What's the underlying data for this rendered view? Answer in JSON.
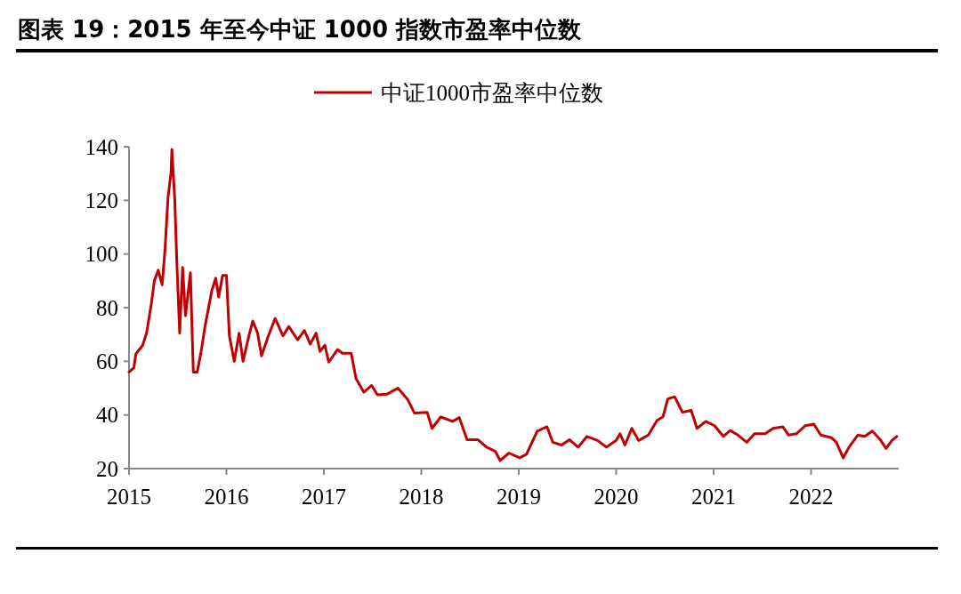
{
  "chart_data": {
    "type": "line",
    "title": "图表 19：2015 年至今中证 1000 指数市盈率中位数",
    "legend": "top",
    "grid": false,
    "xlim": [
      2015,
      2022.9
    ],
    "xticks": [
      2015,
      2016,
      2017,
      2018,
      2019,
      2020,
      2021,
      2022
    ],
    "ylim": [
      20,
      140
    ],
    "yticks": [
      20,
      40,
      60,
      80,
      100,
      120,
      140
    ],
    "line_style": "solid",
    "marker": "none",
    "series": [
      {
        "name": "中证1000市盈率中位数",
        "color": "#c00000",
        "x": [
          2015.0,
          2015.05,
          2015.07,
          2015.14,
          2015.18,
          2015.23,
          2015.26,
          2015.3,
          2015.34,
          2015.37,
          2015.4,
          2015.43,
          2015.44,
          2015.47,
          2015.49,
          2015.52,
          2015.55,
          2015.58,
          2015.63,
          2015.66,
          2015.7,
          2015.74,
          2015.78,
          2015.85,
          2015.89,
          2015.92,
          2015.96,
          2016.0,
          2016.03,
          2016.08,
          2016.13,
          2016.17,
          2016.23,
          2016.27,
          2016.32,
          2016.36,
          2016.43,
          2016.5,
          2016.58,
          2016.64,
          2016.73,
          2016.8,
          2016.86,
          2016.92,
          2016.96,
          2017.01,
          2017.05,
          2017.14,
          2017.19,
          2017.28,
          2017.33,
          2017.41,
          2017.49,
          2017.55,
          2017.65,
          2017.76,
          2017.86,
          2017.93,
          2018.06,
          2018.11,
          2018.2,
          2018.32,
          2018.39,
          2018.47,
          2018.58,
          2018.67,
          2018.76,
          2018.81,
          2018.9,
          2019.01,
          2019.08,
          2019.19,
          2019.29,
          2019.35,
          2019.44,
          2019.52,
          2019.61,
          2019.7,
          2019.81,
          2019.9,
          2020.0,
          2020.04,
          2020.09,
          2020.16,
          2020.23,
          2020.33,
          2020.42,
          2020.48,
          2020.53,
          2020.6,
          2020.68,
          2020.77,
          2020.83,
          2020.92,
          2021.01,
          2021.1,
          2021.17,
          2021.25,
          2021.34,
          2021.42,
          2021.53,
          2021.61,
          2021.71,
          2021.77,
          2021.85,
          2021.94,
          2022.03,
          2022.1,
          2022.21,
          2022.26,
          2022.33,
          2022.39,
          2022.48,
          2022.55,
          2022.63,
          2022.71,
          2022.77,
          2022.83,
          2022.88
        ],
        "values": [
          56,
          57.6,
          62.7,
          66,
          70.5,
          81.7,
          90,
          94,
          88.5,
          102,
          121,
          130,
          139,
          120,
          97.6,
          70.5,
          95,
          77,
          93,
          56,
          56,
          63.7,
          73,
          86.4,
          91,
          84,
          92,
          92,
          69.5,
          60,
          70.5,
          60,
          69.5,
          75,
          70.5,
          62,
          69.5,
          76,
          69.5,
          73,
          68,
          71.5,
          66.4,
          70.5,
          63.7,
          66,
          59.7,
          64.4,
          63,
          63,
          53.6,
          48.5,
          51,
          47.5,
          47.8,
          50,
          45.8,
          40.7,
          41,
          35,
          39.3,
          37.6,
          39,
          30.8,
          30.8,
          28,
          26.4,
          23,
          25.8,
          24,
          25.4,
          34,
          35.6,
          29.8,
          28.8,
          30.8,
          28,
          32,
          30.5,
          28,
          30.5,
          33,
          28.8,
          35,
          30.5,
          32.5,
          38,
          39.3,
          46,
          46.8,
          41,
          41.7,
          35,
          37.6,
          36,
          32,
          34.2,
          32.5,
          29.8,
          33,
          33,
          35,
          35.6,
          32.5,
          33,
          36,
          36.6,
          32.5,
          31.5,
          29.8,
          24,
          28,
          32.5,
          32,
          34,
          30.8,
          27.5,
          30.5,
          32
        ]
      }
    ]
  }
}
